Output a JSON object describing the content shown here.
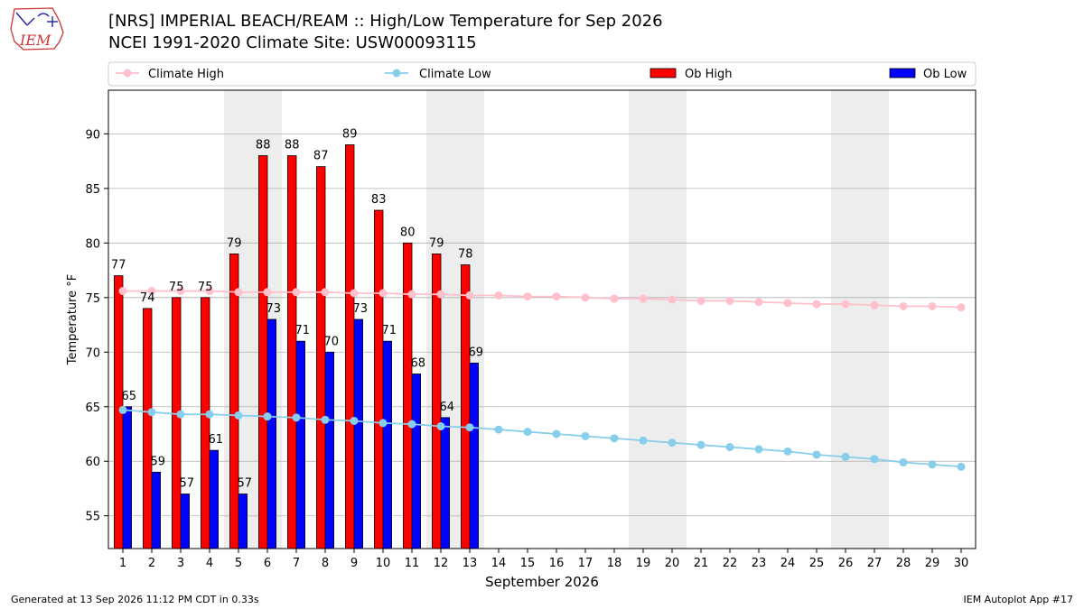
{
  "header": {
    "title_line1": "[NRS] IMPERIAL BEACH/REAM :: High/Low Temperature for Sep 2026",
    "title_line2": "NCEI 1991-2020 Climate Site: USW00093115",
    "logo_text": "IEM"
  },
  "footer": {
    "generated": "Generated at 13 Sep 2026 11:12 PM CDT in 0.33s",
    "app": "IEM Autoplot App #17"
  },
  "colors": {
    "ob_high": "#ff0000",
    "ob_low": "#0000ff",
    "climate_high": "#ffc0cb",
    "climate_low": "#87ceeb",
    "weekend_band": "#ededed",
    "grid": "#b0b0b0"
  },
  "chart_data": {
    "type": "bar",
    "title": "[NRS] IMPERIAL BEACH/REAM :: High/Low Temperature for Sep 2026",
    "subtitle": "NCEI 1991-2020 Climate Site: USW00093115",
    "xlabel": "September 2026",
    "ylabel": "Temperature °F",
    "ylim": [
      52,
      94
    ],
    "yticks": [
      55,
      60,
      65,
      70,
      75,
      80,
      85,
      90
    ],
    "grid": true,
    "legend_position": "top",
    "legend": [
      "Climate High",
      "Climate Low",
      "Ob High",
      "Ob Low"
    ],
    "days": [
      1,
      2,
      3,
      4,
      5,
      6,
      7,
      8,
      9,
      10,
      11,
      12,
      13,
      14,
      15,
      16,
      17,
      18,
      19,
      20,
      21,
      22,
      23,
      24,
      25,
      26,
      27,
      28,
      29,
      30
    ],
    "shaded_days": [
      [
        5,
        6
      ],
      [
        12,
        13
      ],
      [
        19,
        20
      ],
      [
        26,
        27
      ]
    ],
    "series": [
      {
        "name": "Ob High",
        "kind": "bar",
        "values": [
          77,
          74,
          75,
          75,
          79,
          88,
          88,
          87,
          89,
          83,
          80,
          79,
          78
        ]
      },
      {
        "name": "Ob Low",
        "kind": "bar",
        "values": [
          65,
          59,
          57,
          61,
          57,
          73,
          71,
          70,
          73,
          71,
          68,
          64,
          69
        ]
      },
      {
        "name": "Climate High",
        "kind": "line",
        "values": [
          75.6,
          75.6,
          75.6,
          75.6,
          75.5,
          75.5,
          75.5,
          75.5,
          75.4,
          75.4,
          75.3,
          75.3,
          75.2,
          75.2,
          75.1,
          75.1,
          75.0,
          74.9,
          74.9,
          74.8,
          74.7,
          74.7,
          74.6,
          74.5,
          74.4,
          74.4,
          74.3,
          74.2,
          74.2,
          74.1
        ]
      },
      {
        "name": "Climate Low",
        "kind": "line",
        "values": [
          64.7,
          64.5,
          64.3,
          64.3,
          64.2,
          64.1,
          64.0,
          63.8,
          63.7,
          63.5,
          63.4,
          63.2,
          63.1,
          62.9,
          62.7,
          62.5,
          62.3,
          62.1,
          61.9,
          61.7,
          61.5,
          61.3,
          61.1,
          60.9,
          60.6,
          60.4,
          60.2,
          59.9,
          59.7,
          59.5
        ]
      }
    ]
  }
}
